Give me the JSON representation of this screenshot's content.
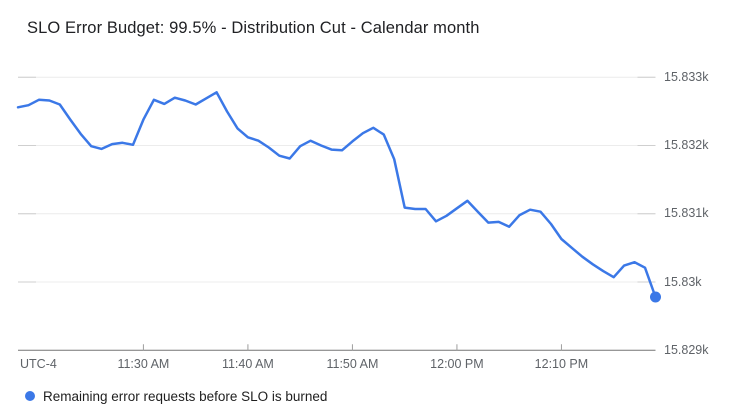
{
  "header": {
    "title": "SLO Error Budget: 99.5% - Distribution Cut - Calendar month"
  },
  "legend": {
    "label": "Remaining error requests before SLO is burned"
  },
  "axes": {
    "timezone_label": "UTC-4"
  },
  "colors": {
    "line": "#3b78e7",
    "end_marker": "#3b78e7",
    "grid": "#ececec",
    "grid_stub": "#cfcfcf",
    "axis": "#757575",
    "tick": "#9e9e9e",
    "label": "#5f6368",
    "title": "#202124"
  },
  "chart_data": {
    "type": "line",
    "title": "SLO Error Budget: 99.5% - Distribution Cut - Calendar month",
    "timezone_label": "UTC-4",
    "x_tick_labels": [
      "11:30 AM",
      "11:40 AM",
      "11:50 AM",
      "12:00 PM",
      "12:10 PM"
    ],
    "x_tick_minute_offsets": [
      12,
      22,
      32,
      42,
      52
    ],
    "y_tick_labels": [
      "15.833k",
      "15.832k",
      "15.831k",
      "15.83k",
      "15.829k"
    ],
    "y_tick_values": [
      15833,
      15832,
      15831,
      15830,
      15829
    ],
    "y_range": [
      15829,
      15833
    ],
    "grid": "horizontal-only",
    "legend_position": "bottom-left",
    "end_marker": true,
    "series": [
      {
        "name": "Remaining error requests before SLO is burned",
        "color": "#3b78e7",
        "start_time": "11:18 AM",
        "end_time": "12:19 PM",
        "interval_minutes": 1,
        "values": [
          15832.56,
          15832.59,
          15832.67,
          15832.66,
          15832.6,
          15832.38,
          15832.17,
          15831.99,
          15831.95,
          15832.02,
          15832.04,
          15832.01,
          15832.38,
          15832.67,
          15832.61,
          15832.7,
          15832.66,
          15832.6,
          15832.69,
          15832.78,
          15832.5,
          15832.25,
          15832.12,
          15832.07,
          15831.97,
          15831.85,
          15831.81,
          15831.99,
          15832.07,
          15832.0,
          15831.94,
          15831.93,
          15832.06,
          15832.18,
          15832.26,
          15832.16,
          15831.8,
          15831.09,
          15831.07,
          15831.07,
          15830.89,
          15830.97,
          15831.08,
          15831.19,
          15831.03,
          15830.87,
          15830.88,
          15830.81,
          15830.98,
          15831.06,
          15831.03,
          15830.85,
          15830.63,
          15830.5,
          15830.37,
          15830.26,
          15830.16,
          15830.07,
          15830.24,
          15830.29,
          15830.21,
          15829.78
        ]
      }
    ]
  }
}
